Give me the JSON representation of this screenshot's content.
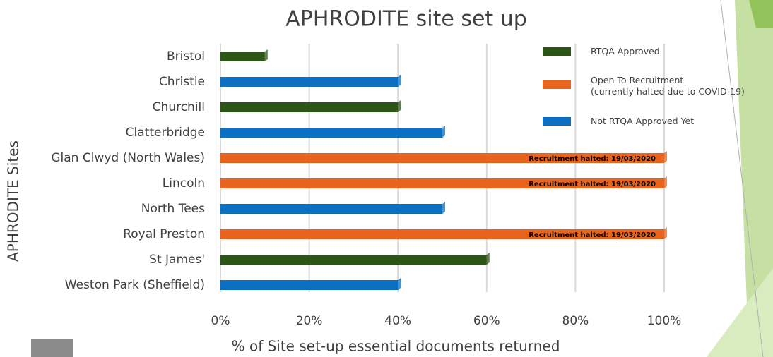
{
  "chart_data": {
    "type": "bar",
    "orientation": "horizontal",
    "title": "APHRODITE site set up",
    "x_label": "% of Site set-up essential documents returned",
    "y_label": "APHRODITE Sites",
    "categories": [
      "Bristol",
      "Christie",
      "Churchill",
      "Clatterbridge",
      "Glan Clwyd (North Wales)",
      "Lincoln",
      "North Tees",
      "Royal Preston",
      "St James'",
      "Weston Park (Sheffield)"
    ],
    "series": [
      {
        "name": "RTQA Approved",
        "color": "#2e5518",
        "values": [
          10,
          null,
          40,
          null,
          null,
          null,
          null,
          null,
          60,
          null
        ]
      },
      {
        "name": "Open To Recruitment\n(currently halted due to COVID-19)",
        "color": "#e8641c",
        "values": [
          null,
          null,
          null,
          null,
          100,
          100,
          null,
          100,
          null,
          null
        ],
        "notes": [
          null,
          null,
          null,
          null,
          "Recruitment halted: 19/03/2020",
          "Recruitment halted: 19/03/2020",
          null,
          "Recruitment halted: 19/03/2020",
          null,
          null
        ]
      },
      {
        "name": "Not RTQA Approved Yet",
        "color": "#0a70c4",
        "values": [
          null,
          40,
          null,
          50,
          null,
          null,
          50,
          null,
          null,
          40
        ]
      }
    ],
    "xlim": [
      0,
      100
    ],
    "xticks": [
      {
        "value": 0,
        "label": "0%"
      },
      {
        "value": 20,
        "label": "20%"
      },
      {
        "value": 40,
        "label": "40%"
      },
      {
        "value": 60,
        "label": "60%"
      },
      {
        "value": 80,
        "label": "80%"
      },
      {
        "value": 100,
        "label": "100%"
      }
    ],
    "grid": true
  }
}
